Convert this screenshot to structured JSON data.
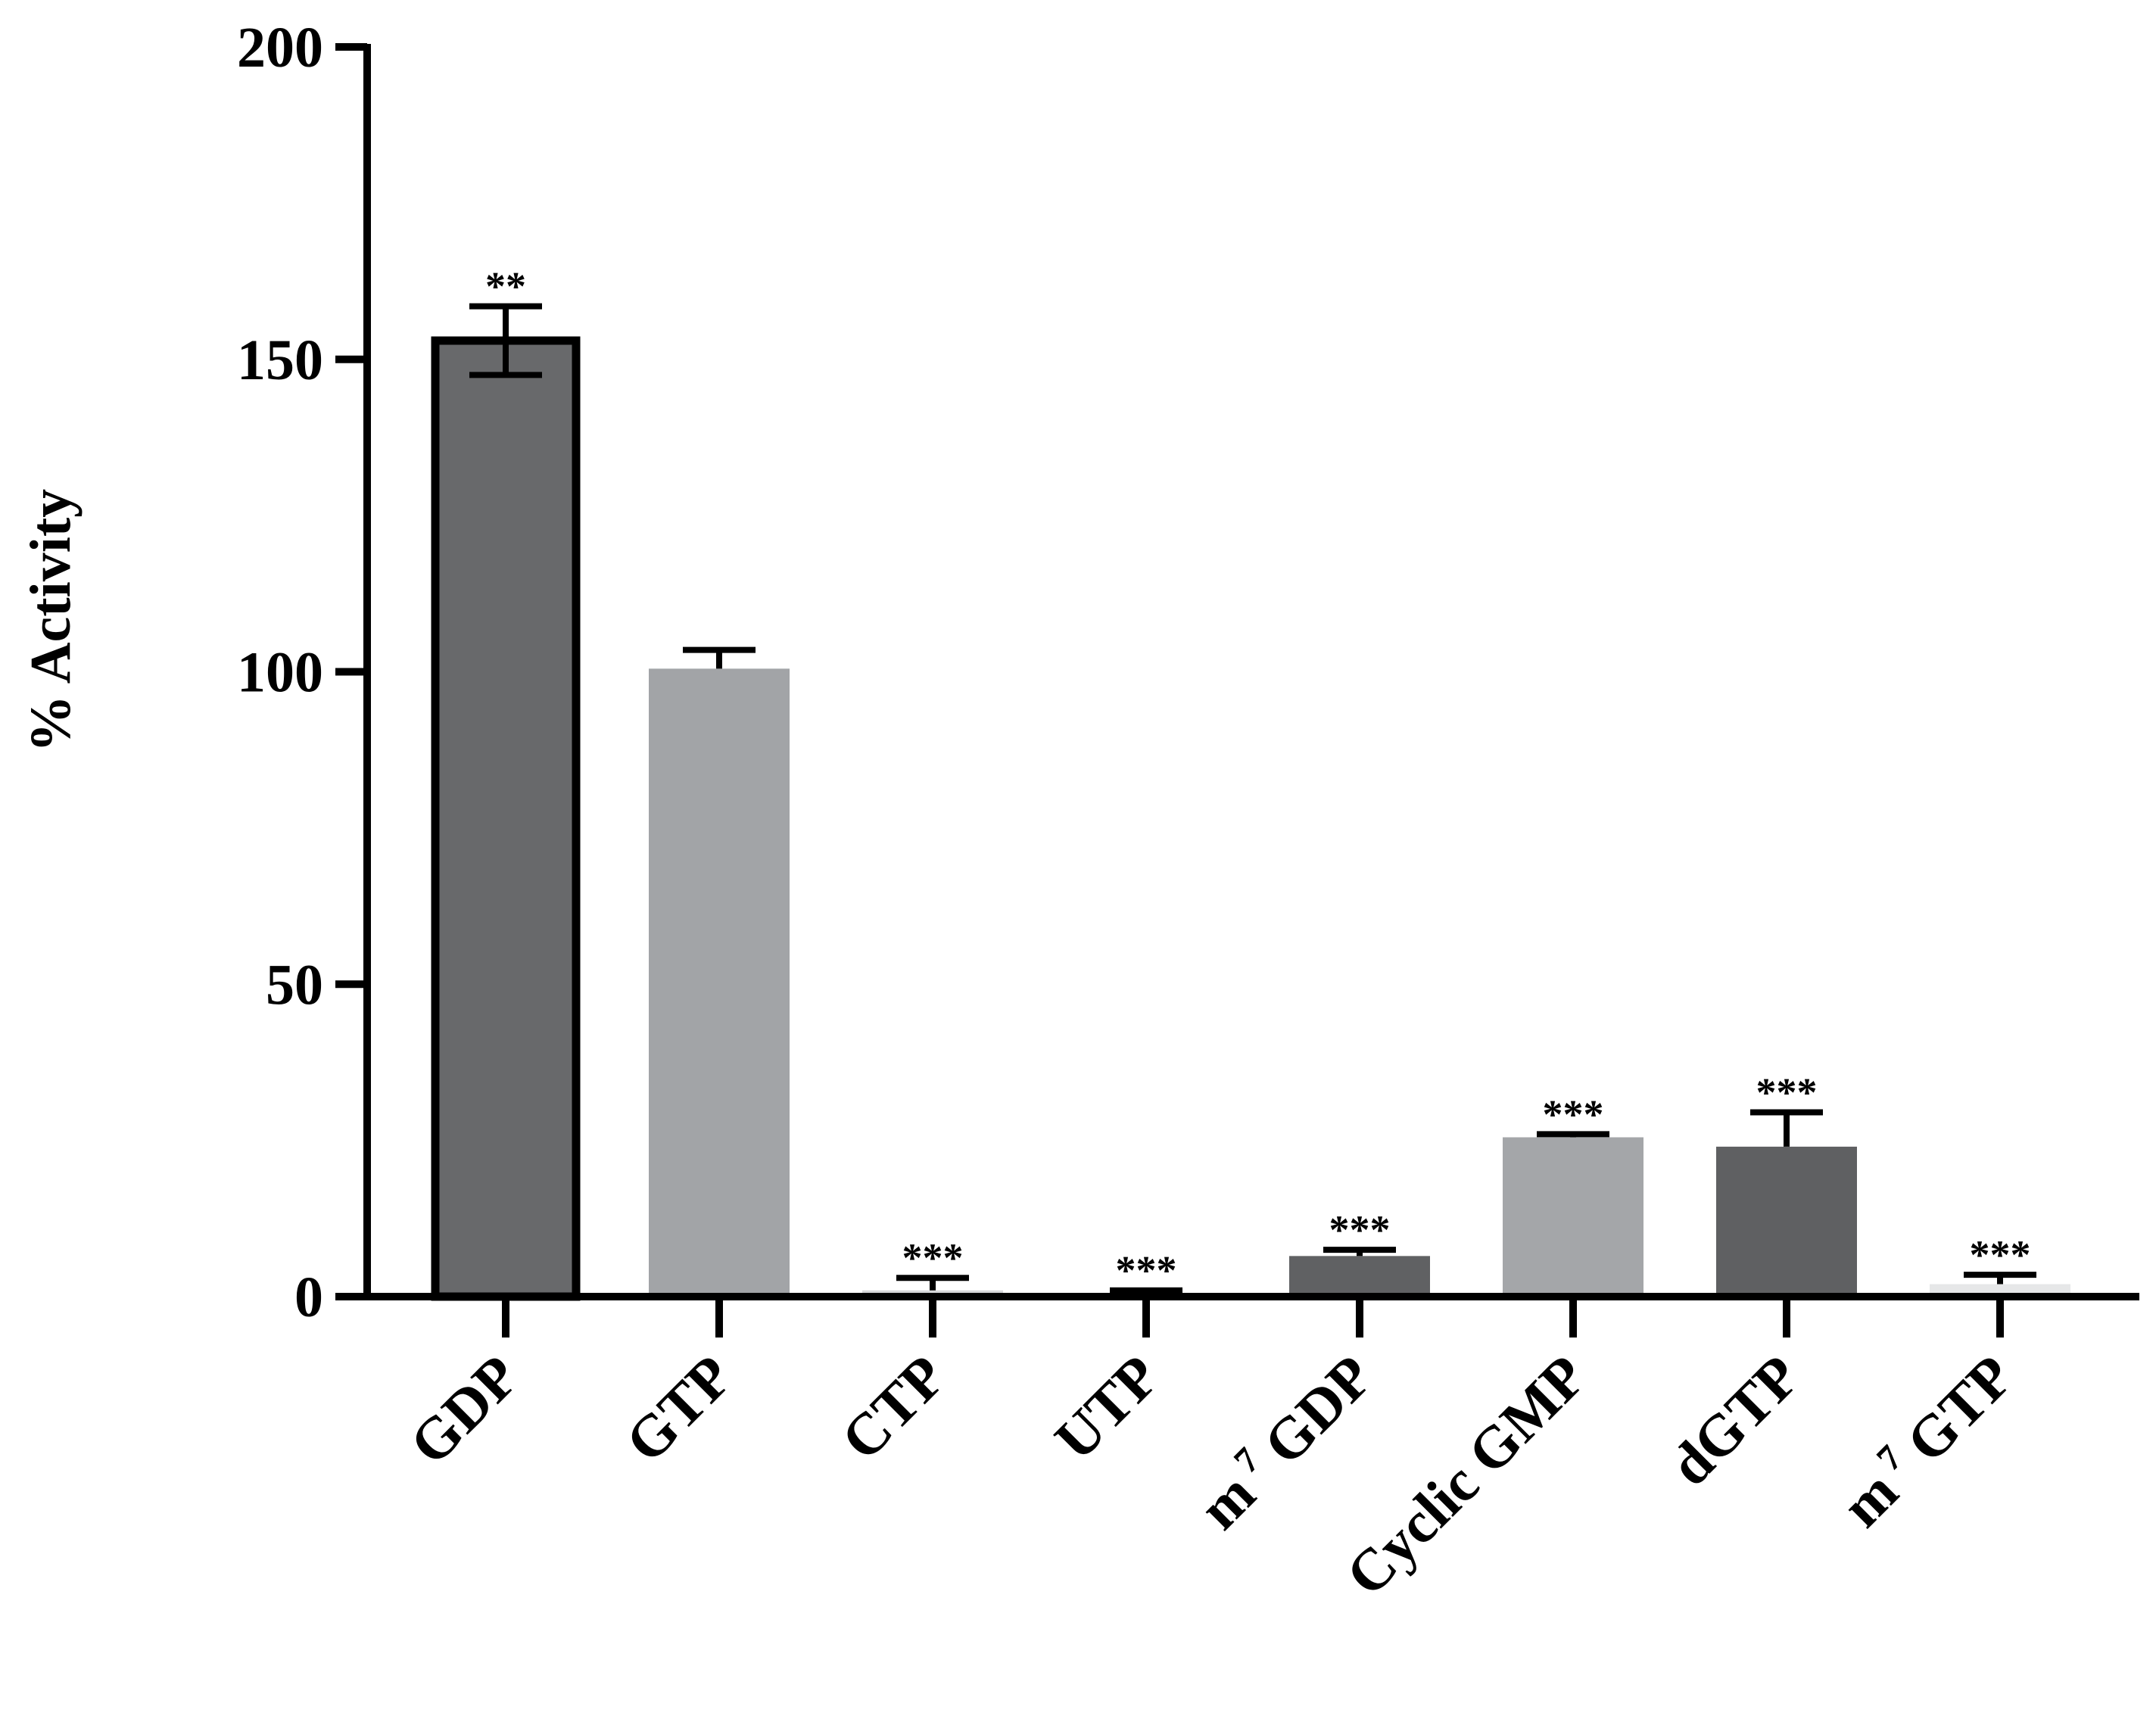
{
  "chart_data": {
    "type": "bar",
    "title": "",
    "xlabel": "",
    "ylabel": "% Activity",
    "ylim": [
      0,
      200
    ],
    "yticks": [
      0,
      50,
      100,
      150,
      200
    ],
    "ytick_labels": [
      "0",
      "50",
      "100",
      "150",
      "200"
    ],
    "categories": [
      "GDP",
      "GTP",
      "CTP",
      "UTP",
      "m 7 GDP",
      "Cyclic GMP",
      "dGTP",
      "m 7 GTP"
    ],
    "category_labels": [
      {
        "base": "GDP",
        "sup": "",
        "rest": ""
      },
      {
        "base": "GTP",
        "sup": "",
        "rest": ""
      },
      {
        "base": "CTP",
        "sup": "",
        "rest": ""
      },
      {
        "base": "UTP",
        "sup": "",
        "rest": ""
      },
      {
        "base": "m",
        "sup": "7",
        "rest": " GDP"
      },
      {
        "base": "Cyclic GMP",
        "sup": "",
        "rest": ""
      },
      {
        "base": "dGTP",
        "sup": "",
        "rest": ""
      },
      {
        "base": "m",
        "sup": "7",
        "rest": " GTP"
      }
    ],
    "values": [
      153,
      100.5,
      1,
      0.5,
      6.5,
      25.5,
      24,
      2
    ],
    "error": [
      5.5,
      3,
      2,
      0.5,
      1,
      0.5,
      5.5,
      1.5
    ],
    "significance": [
      "**",
      "",
      "***",
      "***",
      "***",
      "***",
      "***",
      "***"
    ],
    "bar_colors": [
      "#68696b",
      "#a2a4a7",
      "#d6d7d9",
      "#c8c9cb",
      "#606163",
      "#a4a6a9",
      "#5f6062",
      "#e6e7e8"
    ],
    "bar_outlined": [
      true,
      false,
      false,
      false,
      false,
      false,
      false,
      false
    ]
  }
}
